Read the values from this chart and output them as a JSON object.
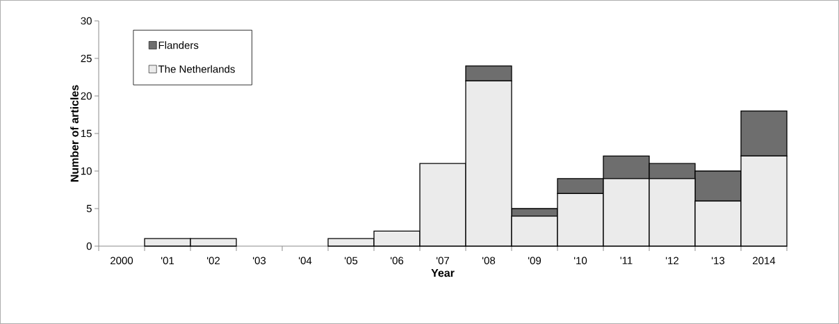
{
  "chart_data": {
    "type": "bar",
    "stacked": true,
    "xlabel": "Year",
    "ylabel": "Number of articles",
    "categories": [
      "2000",
      "'01",
      "'02",
      "'03",
      "'04",
      "'05",
      "'06",
      "'07",
      "'08",
      "'09",
      "'10",
      "'11",
      "'12",
      "'13",
      "2014"
    ],
    "series": [
      {
        "name": "The Netherlands",
        "color": "#ebebeb",
        "values": [
          0,
          1,
          1,
          0,
          0,
          1,
          2,
          11,
          22,
          4,
          7,
          9,
          9,
          6,
          12
        ]
      },
      {
        "name": "Flanders",
        "color": "#6e6e6e",
        "values": [
          0,
          0,
          0,
          0,
          0,
          0,
          0,
          0,
          2,
          1,
          2,
          3,
          2,
          4,
          6
        ]
      }
    ],
    "ylim": [
      0,
      30
    ],
    "yticks": [
      0,
      5,
      10,
      15,
      20,
      25,
      30
    ],
    "grid": false,
    "legend": "top left"
  }
}
